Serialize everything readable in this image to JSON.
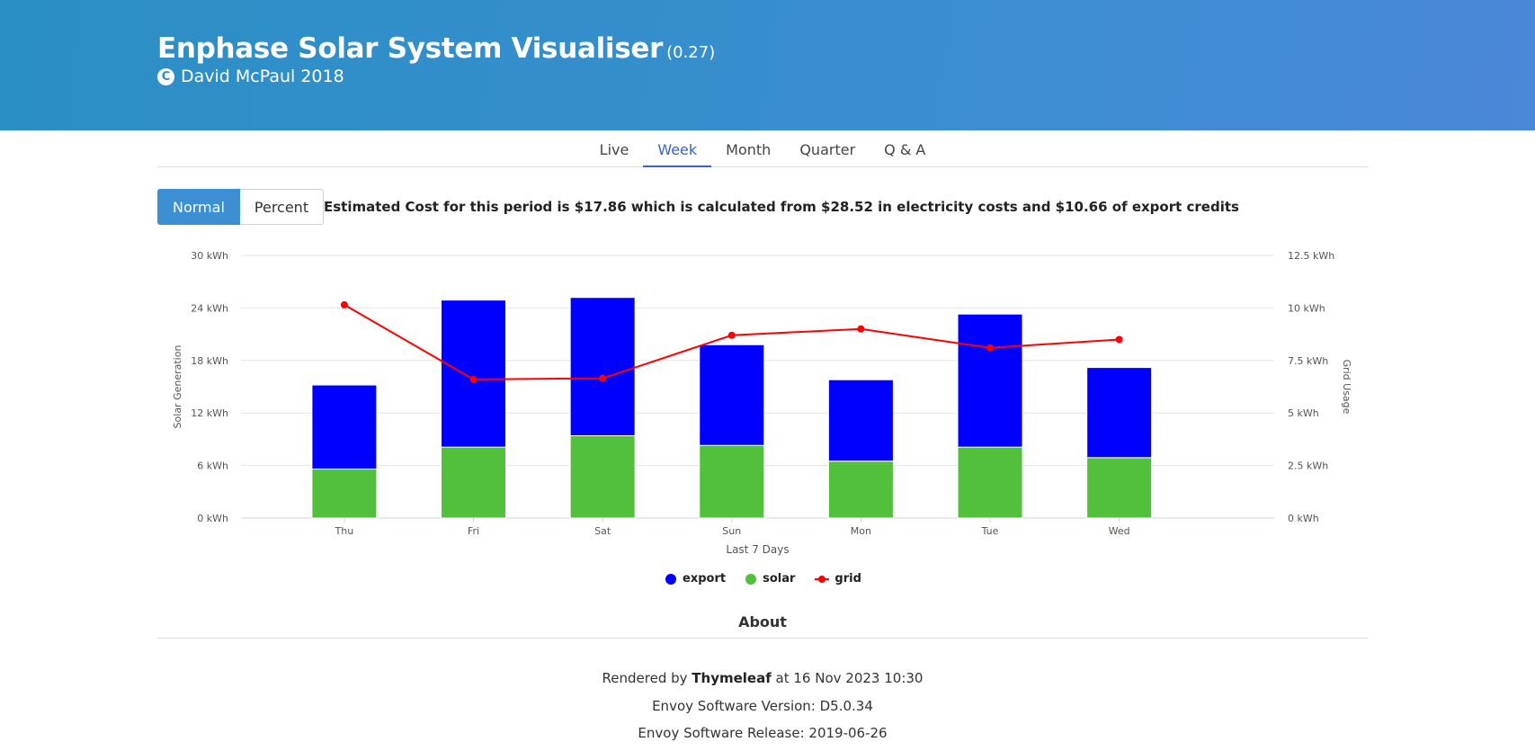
{
  "header": {
    "title": "Enphase Solar System Visualiser",
    "version": "(0.27)",
    "copyright": "David McPaul 2018",
    "background": "#2f8ec9"
  },
  "nav": {
    "tabs": [
      {
        "label": "Live",
        "active": false
      },
      {
        "label": "Week",
        "active": true
      },
      {
        "label": "Month",
        "active": false
      },
      {
        "label": "Quarter",
        "active": false
      },
      {
        "label": "Q & A",
        "active": false
      }
    ]
  },
  "toggle": {
    "normal_label": "Normal",
    "percent_label": "Percent",
    "selected": "Normal"
  },
  "cost_text": "Estimated Cost for this period is $17.86 which is calculated from $28.52 in electricity costs and $10.66 of export credits",
  "chart_data": {
    "type": "bar",
    "stacked": true,
    "categories": [
      "Thu",
      "Fri",
      "Sat",
      "Sun",
      "Mon",
      "Tue",
      "Wed"
    ],
    "xlabel": "Last 7 Days",
    "ylabel": "Solar Generation",
    "ylabel_right": "Grid Usage",
    "ylim": [
      0,
      30
    ],
    "ylim_right": [
      0,
      12.5
    ],
    "yticks": [
      "0 kWh",
      "6 kWh",
      "12 kWh",
      "18 kWh",
      "24 kWh",
      "30 kWh"
    ],
    "yticks_right": [
      "0 kWh",
      "2.5 kWh",
      "5 kWh",
      "7.5 kWh",
      "10 kWh",
      "12.5 kWh"
    ],
    "grid": true,
    "legend_position": "bottom",
    "series": [
      {
        "name": "solar",
        "type": "bar",
        "axis": "left",
        "color": "#52c03c",
        "values": [
          5.6,
          8.1,
          9.4,
          8.3,
          6.5,
          8.1,
          6.9
        ]
      },
      {
        "name": "export",
        "type": "bar",
        "axis": "left",
        "color": "#0000ff",
        "values": [
          9.6,
          16.8,
          15.8,
          11.5,
          9.3,
          15.2,
          10.3
        ]
      },
      {
        "name": "grid",
        "type": "line",
        "axis": "right",
        "color": "#ff0000",
        "values": [
          10.15,
          6.6,
          6.65,
          8.7,
          9.0,
          8.1,
          8.5
        ]
      }
    ]
  },
  "legend": {
    "items": [
      {
        "label": "export",
        "color": "#0000ff"
      },
      {
        "label": "solar",
        "color": "#52c03c"
      },
      {
        "label": "grid",
        "color": "#ff0000"
      }
    ]
  },
  "about": {
    "heading": "About",
    "rendered_prefix": "Rendered by",
    "rendered_engine": "Thymeleaf",
    "rendered_suffix": "at 16 Nov 2023 10:30",
    "software_version": "Envoy Software Version: D5.0.34",
    "software_release": "Envoy Software Release: 2019-06-26"
  }
}
